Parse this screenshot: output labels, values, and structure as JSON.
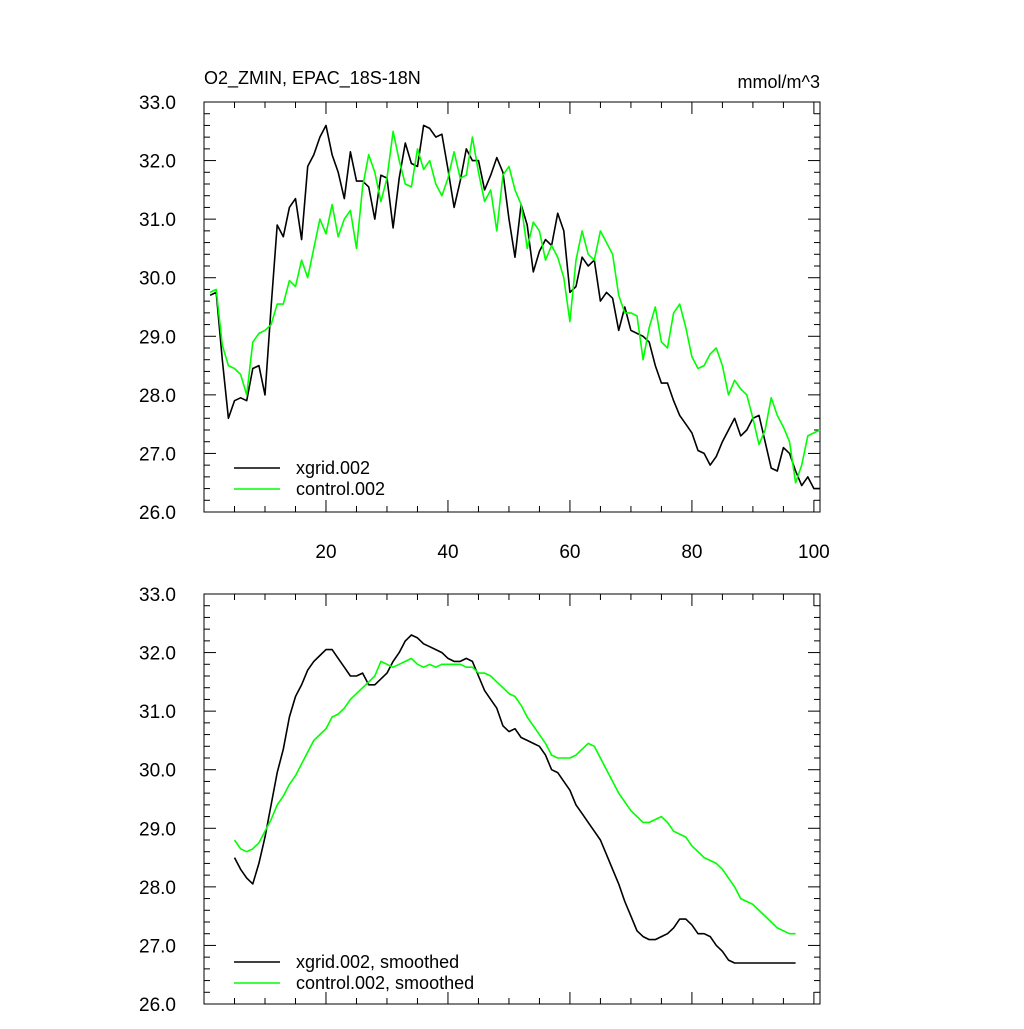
{
  "chart_data": [
    {
      "type": "line",
      "title": "O2_ZMIN, EPAC_18S-18N",
      "units": "mmol/m^3",
      "xlim": [
        0,
        101
      ],
      "ylim": [
        26.0,
        33.0
      ],
      "x_ticks": [
        20,
        40,
        60,
        80,
        100
      ],
      "x_tick_labels": [
        "20",
        "40",
        "60",
        "80",
        "100"
      ],
      "y_ticks": [
        26.0,
        27.0,
        28.0,
        29.0,
        30.0,
        31.0,
        32.0,
        33.0
      ],
      "y_tick_labels": [
        "26.0",
        "27.0",
        "28.0",
        "29.0",
        "30.0",
        "31.0",
        "32.0",
        "33.0"
      ],
      "legend_position": "bottom-left",
      "x": [
        1,
        2,
        3,
        4,
        5,
        6,
        7,
        8,
        9,
        10,
        11,
        12,
        13,
        14,
        15,
        16,
        17,
        18,
        19,
        20,
        21,
        22,
        23,
        24,
        25,
        26,
        27,
        28,
        29,
        30,
        31,
        32,
        33,
        34,
        35,
        36,
        37,
        38,
        39,
        40,
        41,
        42,
        43,
        44,
        45,
        46,
        47,
        48,
        49,
        50,
        51,
        52,
        53,
        54,
        55,
        56,
        57,
        58,
        59,
        60,
        61,
        62,
        63,
        64,
        65,
        66,
        67,
        68,
        69,
        70,
        71,
        72,
        73,
        74,
        75,
        76,
        77,
        78,
        79,
        80,
        81,
        82,
        83,
        84,
        85,
        86,
        87,
        88,
        89,
        90,
        91,
        92,
        93,
        94,
        95,
        96,
        97,
        98,
        99,
        100,
        101
      ],
      "series": [
        {
          "name": "xgrid.002",
          "color": "#000000",
          "values": [
            29.7,
            29.75,
            28.6,
            27.6,
            27.9,
            27.95,
            27.9,
            28.45,
            28.5,
            28.0,
            29.5,
            30.9,
            30.7,
            31.2,
            31.35,
            30.65,
            31.9,
            32.1,
            32.4,
            32.6,
            32.1,
            31.8,
            31.35,
            32.15,
            31.65,
            31.65,
            31.55,
            31.0,
            31.75,
            31.7,
            30.85,
            31.7,
            32.3,
            31.95,
            31.9,
            32.6,
            32.55,
            32.4,
            32.45,
            31.85,
            31.2,
            31.65,
            32.2,
            32.0,
            32.0,
            31.5,
            31.75,
            32.05,
            31.8,
            31.0,
            30.35,
            31.25,
            30.9,
            30.1,
            30.45,
            30.65,
            30.55,
            31.1,
            30.8,
            29.75,
            29.85,
            30.35,
            30.2,
            30.3,
            29.6,
            29.75,
            29.65,
            29.1,
            29.5,
            29.1,
            29.05,
            29.0,
            28.9,
            28.5,
            28.2,
            28.2,
            27.9,
            27.65,
            27.5,
            27.35,
            27.05,
            27.0,
            26.8,
            26.95,
            27.2,
            27.4,
            27.6,
            27.3,
            27.4,
            27.6,
            27.65,
            27.2,
            26.75,
            26.7,
            27.1,
            27.0,
            26.7,
            26.45,
            26.6,
            26.4,
            26.4
          ]
        },
        {
          "name": "control.002",
          "color": "#00ff00",
          "values": [
            29.75,
            29.8,
            28.85,
            28.5,
            28.45,
            28.35,
            28.0,
            28.9,
            29.05,
            29.1,
            29.2,
            29.55,
            29.55,
            29.95,
            29.85,
            30.3,
            30.0,
            30.5,
            31.0,
            30.75,
            31.25,
            30.7,
            31.0,
            31.15,
            30.5,
            31.55,
            32.1,
            31.8,
            31.3,
            31.7,
            32.5,
            32.0,
            31.6,
            31.55,
            32.2,
            31.85,
            32.0,
            31.6,
            31.4,
            31.7,
            32.15,
            31.7,
            31.75,
            32.4,
            31.8,
            31.3,
            31.5,
            30.8,
            31.75,
            31.9,
            31.5,
            31.25,
            30.5,
            30.95,
            30.8,
            30.3,
            30.55,
            30.35,
            30.0,
            29.25,
            30.3,
            30.8,
            30.4,
            30.3,
            30.8,
            30.6,
            30.4,
            29.7,
            29.4,
            29.4,
            29.35,
            28.6,
            29.15,
            29.5,
            28.9,
            28.8,
            29.4,
            29.55,
            29.15,
            28.65,
            28.45,
            28.5,
            28.7,
            28.8,
            28.5,
            28.0,
            28.25,
            28.1,
            28.0,
            27.6,
            27.15,
            27.4,
            27.95,
            27.65,
            27.45,
            27.2,
            26.5,
            26.8,
            27.3,
            27.35,
            27.4
          ]
        }
      ]
    },
    {
      "type": "line",
      "title": "",
      "xlim": [
        0,
        101
      ],
      "ylim": [
        26.0,
        33.0
      ],
      "x_ticks": [
        20,
        40,
        60,
        80,
        100
      ],
      "y_ticks": [
        26.0,
        27.0,
        28.0,
        29.0,
        30.0,
        31.0,
        32.0,
        33.0
      ],
      "y_tick_labels": [
        "26.0",
        "27.0",
        "28.0",
        "29.0",
        "30.0",
        "31.0",
        "32.0",
        "33.0"
      ],
      "legend_position": "bottom-left",
      "x": [
        5,
        6,
        7,
        8,
        9,
        10,
        11,
        12,
        13,
        14,
        15,
        16,
        17,
        18,
        19,
        20,
        21,
        22,
        23,
        24,
        25,
        26,
        27,
        28,
        29,
        30,
        31,
        32,
        33,
        34,
        35,
        36,
        37,
        38,
        39,
        40,
        41,
        42,
        43,
        44,
        45,
        46,
        47,
        48,
        49,
        50,
        51,
        52,
        53,
        54,
        55,
        56,
        57,
        58,
        59,
        60,
        61,
        62,
        63,
        64,
        65,
        66,
        67,
        68,
        69,
        70,
        71,
        72,
        73,
        74,
        75,
        76,
        77,
        78,
        79,
        80,
        81,
        82,
        83,
        84,
        85,
        86,
        87,
        88,
        89,
        90,
        91,
        92,
        93,
        94,
        95,
        96,
        97
      ],
      "series": [
        {
          "name": "xgrid.002, smoothed",
          "color": "#000000",
          "values": [
            28.5,
            28.3,
            28.15,
            28.05,
            28.4,
            28.85,
            29.4,
            29.95,
            30.35,
            30.9,
            31.25,
            31.45,
            31.7,
            31.85,
            31.95,
            32.05,
            32.05,
            31.9,
            31.75,
            31.6,
            31.6,
            31.65,
            31.45,
            31.45,
            31.55,
            31.65,
            31.85,
            32.0,
            32.2,
            32.3,
            32.25,
            32.15,
            32.1,
            32.05,
            32.0,
            31.9,
            31.85,
            31.85,
            31.9,
            31.85,
            31.6,
            31.35,
            31.2,
            31.05,
            30.75,
            30.65,
            30.7,
            30.55,
            30.5,
            30.45,
            30.4,
            30.25,
            30.0,
            29.95,
            29.8,
            29.65,
            29.4,
            29.25,
            29.1,
            28.95,
            28.8,
            28.55,
            28.3,
            28.05,
            27.75,
            27.5,
            27.25,
            27.15,
            27.1,
            27.1,
            27.15,
            27.2,
            27.3,
            27.45,
            27.45,
            27.35,
            27.2,
            27.2,
            27.15,
            27.0,
            26.9,
            26.75,
            26.7,
            26.7,
            26.7,
            26.7,
            26.7,
            26.7,
            26.7,
            26.7,
            26.7,
            26.7,
            26.7
          ]
        },
        {
          "name": "control.002, smoothed",
          "color": "#00ff00",
          "values": [
            28.8,
            28.65,
            28.6,
            28.65,
            28.75,
            28.95,
            29.15,
            29.4,
            29.55,
            29.75,
            29.9,
            30.1,
            30.3,
            30.5,
            30.6,
            30.7,
            30.9,
            30.95,
            31.05,
            31.2,
            31.3,
            31.4,
            31.5,
            31.6,
            31.85,
            31.8,
            31.75,
            31.8,
            31.85,
            31.9,
            31.8,
            31.75,
            31.8,
            31.75,
            31.8,
            31.8,
            31.8,
            31.8,
            31.75,
            31.75,
            31.65,
            31.65,
            31.6,
            31.5,
            31.4,
            31.3,
            31.25,
            31.1,
            30.9,
            30.75,
            30.6,
            30.45,
            30.25,
            30.2,
            30.2,
            30.2,
            30.25,
            30.35,
            30.45,
            30.4,
            30.2,
            30.0,
            29.8,
            29.6,
            29.45,
            29.3,
            29.2,
            29.1,
            29.1,
            29.15,
            29.2,
            29.1,
            28.95,
            28.9,
            28.85,
            28.7,
            28.6,
            28.5,
            28.45,
            28.4,
            28.3,
            28.15,
            28.0,
            27.8,
            27.75,
            27.7,
            27.6,
            27.5,
            27.4,
            27.3,
            27.25,
            27.2,
            27.2
          ]
        }
      ]
    }
  ]
}
